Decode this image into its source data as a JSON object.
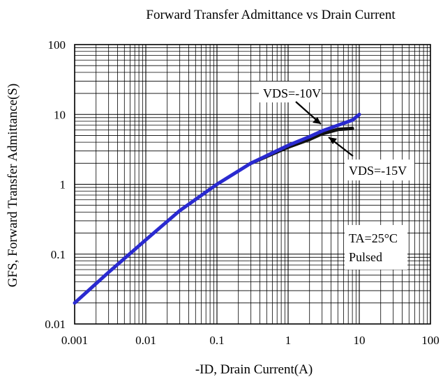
{
  "chart_data": {
    "type": "line",
    "title": "Forward Transfer Admittance vs Drain Current",
    "xlabel": "-ID, Drain Current(A)",
    "ylabel": "GFS, Forward Transfer Admittance(S)",
    "x_scale": "log",
    "y_scale": "log",
    "xlim": [
      0.001,
      100
    ],
    "ylim": [
      0.01,
      100
    ],
    "x_ticks": [
      "0.001",
      "0.01",
      "0.1",
      "1",
      "10",
      "100"
    ],
    "y_ticks": [
      "0.01",
      "0.1",
      "1",
      "10",
      "100"
    ],
    "grid": true,
    "series": [
      {
        "name": "VDS=-10V",
        "color": "#2a2ad0",
        "x": [
          0.001,
          0.003,
          0.01,
          0.03,
          0.1,
          0.3,
          1,
          2,
          3,
          5,
          8,
          10
        ],
        "y": [
          0.02,
          0.055,
          0.16,
          0.42,
          1.0,
          2.0,
          3.6,
          4.8,
          5.8,
          7.0,
          8.3,
          10.0
        ]
      },
      {
        "name": "VDS=-15V",
        "color": "#111111",
        "x": [
          0.3,
          1,
          2,
          3,
          5,
          8
        ],
        "y": [
          2.0,
          3.4,
          4.4,
          5.3,
          6.1,
          6.3
        ]
      }
    ],
    "annotations": {
      "label_10v_main": "VDS=-10V",
      "label_15v_main": "VDS=-15V",
      "ta_main": "TA=25",
      "ta_unit": "°C",
      "pulsed": "Pulsed"
    }
  }
}
